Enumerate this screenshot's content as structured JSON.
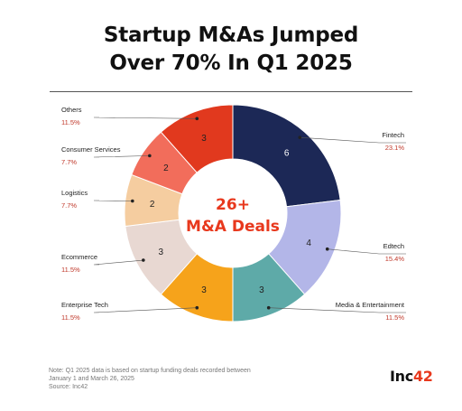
{
  "title_line1": "Startup M&As Jumped",
  "title_line2": "Over 70% In Q1 2025",
  "footnote": {
    "line1": "Note: Q1 2025 data is based on startup funding deals recorded between",
    "line2": "January 1 and March 26, 2025",
    "line3": "Source: Inc42"
  },
  "logo": {
    "main": "Inc",
    "accent": "42"
  },
  "chart_data": {
    "type": "pie",
    "style": "donut",
    "center_text": [
      "26+",
      "M&A Deals"
    ],
    "center_color": "#e8381d",
    "label_color": "#c0392b",
    "slices": [
      {
        "label": "Fintech",
        "value": 6,
        "percent": "23.1%",
        "color": "#1c2856"
      },
      {
        "label": "Edtech",
        "value": 4,
        "percent": "15.4%",
        "color": "#b3b6e8"
      },
      {
        "label": "Media & Entertainment",
        "value": 3,
        "percent": "11.5%",
        "color": "#5eaaa8"
      },
      {
        "label": "Enterprise Tech",
        "value": 3,
        "percent": "11.5%",
        "color": "#f6a31b"
      },
      {
        "label": "Ecommerce",
        "value": 3,
        "percent": "11.5%",
        "color": "#e8d8d2"
      },
      {
        "label": "Logistics",
        "value": 2,
        "percent": "7.7%",
        "color": "#f5cda0"
      },
      {
        "label": "Consumer Services",
        "value": 2,
        "percent": "7.7%",
        "color": "#f26d5b"
      },
      {
        "label": "Others",
        "value": 3,
        "percent": "11.5%",
        "color": "#e1391e"
      }
    ]
  }
}
